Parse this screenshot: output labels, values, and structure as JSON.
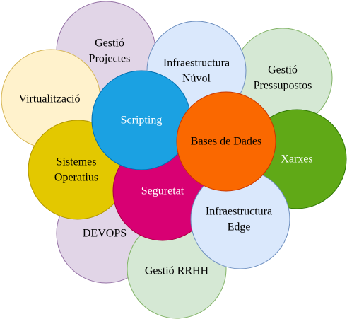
{
  "diagram": {
    "bubbles": [
      {
        "id": "gestio-projectes",
        "lines": [
          "Gestió",
          "Projectes"
        ],
        "fill": "#e1d5e7",
        "stroke": "#9673a6",
        "text_color": "#000000"
      },
      {
        "id": "virtualitzacio",
        "lines": [
          "Virtualització"
        ],
        "fill": "#fff2cc",
        "stroke": "#d6b656",
        "text_color": "#000000"
      },
      {
        "id": "gestio-pressupostos",
        "lines": [
          "Gestió",
          "Pressupostos"
        ],
        "fill": "#d5e8d4",
        "stroke": "#82b366",
        "text_color": "#000000"
      },
      {
        "id": "devops",
        "lines": [
          "DEVOPS"
        ],
        "fill": "#e1d5e7",
        "stroke": "#9673a6",
        "text_color": "#000000"
      },
      {
        "id": "gestio-rrhh",
        "lines": [
          "Gestió RRHH"
        ],
        "fill": "#d5e8d4",
        "stroke": "#82b366",
        "text_color": "#000000"
      },
      {
        "id": "xarxes",
        "lines": [
          "Xarxes"
        ],
        "fill": "#60a917",
        "stroke": "#2d7600",
        "text_color": "#ffffff"
      },
      {
        "id": "sistemes-operatius",
        "lines": [
          "Sistemes",
          "Operatius"
        ],
        "fill": "#e3c800",
        "stroke": "#b09500",
        "text_color": "#000000"
      },
      {
        "id": "seguretat",
        "lines": [
          "Seguretat"
        ],
        "fill": "#d80073",
        "stroke": "#a50040",
        "text_color": "#ffffff"
      },
      {
        "id": "infraestructura-nuvol",
        "lines": [
          "Infraestructura",
          "Núvol"
        ],
        "fill": "#dae8fc",
        "stroke": "#6c8ebf",
        "text_color": "#000000"
      },
      {
        "id": "scripting",
        "lines": [
          "Scripting"
        ],
        "fill": "#1ba1e2",
        "stroke": "#006eaf",
        "text_color": "#ffffff"
      },
      {
        "id": "infraestructura-edge",
        "lines": [
          "Infraestructura",
          "Edge"
        ],
        "fill": "#dae8fc",
        "stroke": "#6c8ebf",
        "text_color": "#000000"
      },
      {
        "id": "bases-de-dades",
        "lines": [
          "Bases de Dades"
        ],
        "fill": "#fa6800",
        "stroke": "#c73500",
        "text_color": "#000000"
      }
    ]
  }
}
